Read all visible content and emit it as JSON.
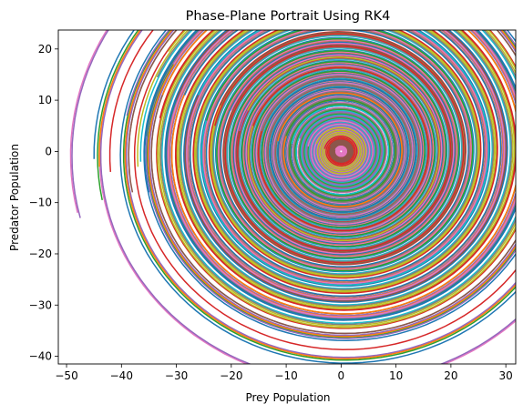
{
  "chart_data": {
    "type": "line",
    "title": "Phase-Plane Portrait Using RK4",
    "xlabel": "Prey Population",
    "ylabel": "Predator Population",
    "xlim": [
      -51.5,
      31.8
    ],
    "ylim": [
      -41.5,
      23.7
    ],
    "xticks": [
      -50,
      -40,
      -30,
      -20,
      -10,
      0,
      10,
      20,
      30
    ],
    "yticks": [
      -40,
      -30,
      -20,
      -10,
      0,
      10,
      20
    ],
    "grid": false,
    "legend": "none",
    "series": [
      {
        "start": [
          -48,
          -12
        ],
        "color": "#e377c2"
      },
      {
        "start": [
          -47.5,
          -13
        ],
        "color": "#9467bd"
      },
      {
        "start": [
          -45,
          -1.5
        ],
        "color": "#1f77b4"
      },
      {
        "start": [
          -44,
          -3
        ],
        "color": "#ff7f0e"
      },
      {
        "start": [
          -43.5,
          -9.5
        ],
        "color": "#2ca02c"
      },
      {
        "start": [
          -42,
          -4
        ],
        "color": "#d62728"
      },
      {
        "start": [
          -39,
          7
        ],
        "color": "#9467bd"
      },
      {
        "start": [
          -38.5,
          -4.5
        ],
        "color": "#7f7f7f"
      },
      {
        "start": [
          -38,
          -8
        ],
        "color": "#8c564b"
      },
      {
        "start": [
          -37,
          -3
        ],
        "color": "#bcbd22"
      },
      {
        "start": [
          -36.5,
          -2
        ],
        "color": "#17becf"
      },
      {
        "start": [
          -35.5,
          3
        ],
        "color": "#2ca02c"
      },
      {
        "start": [
          -35,
          -8
        ],
        "color": "#1f77b4"
      },
      {
        "start": [
          -33.5,
          14.5
        ],
        "color": "#7f7f7f"
      },
      {
        "start": [
          -33,
          6.5
        ],
        "color": "#d62728"
      },
      {
        "start": [
          -32.5,
          11
        ],
        "color": "#ff7f0e"
      },
      {
        "start": [
          -31.5,
          19.5
        ],
        "color": "#bcbd22"
      },
      {
        "start": [
          -30.5,
          17
        ],
        "color": "#e377c2"
      },
      {
        "start": [
          -30,
          10
        ],
        "color": "#8c564b"
      },
      {
        "start": [
          -28.5,
          11
        ],
        "color": "#1f77b4"
      },
      {
        "start": [
          -26,
          11
        ],
        "color": "#17becf"
      },
      {
        "start": [
          -24.5,
          6
        ],
        "color": "#2ca02c"
      },
      {
        "start": [
          -23,
          5
        ],
        "color": "#d62728"
      },
      {
        "start": [
          -22,
          9
        ],
        "color": "#8c564b"
      },
      {
        "start": [
          -20,
          8
        ],
        "color": "#e377c2"
      },
      {
        "start": [
          -18.5,
          4
        ],
        "color": "#9467bd"
      },
      {
        "start": [
          -17,
          8
        ],
        "color": "#bcbd22"
      },
      {
        "start": [
          -16,
          5
        ],
        "color": "#d62728"
      },
      {
        "start": [
          -14.5,
          4
        ],
        "color": "#7f7f7f"
      },
      {
        "start": [
          -13,
          6
        ],
        "color": "#1f77b4"
      },
      {
        "start": [
          -11.5,
          2
        ],
        "color": "#ff7f0e"
      },
      {
        "start": [
          -10,
          3
        ],
        "color": "#2ca02c"
      },
      {
        "start": [
          -9,
          1.5
        ],
        "color": "#17becf"
      },
      {
        "start": [
          -7.5,
          2.5
        ],
        "color": "#9467bd"
      },
      {
        "start": [
          -6,
          1
        ],
        "color": "#e377c2"
      },
      {
        "start": [
          -4.5,
          1.5
        ],
        "color": "#bcbd22"
      },
      {
        "start": [
          -3,
          0.5
        ],
        "color": "#d62728"
      },
      {
        "start": [
          -2,
          1
        ],
        "color": "#8c564b"
      },
      {
        "start": [
          -1,
          0.3
        ],
        "color": "#e377c2"
      }
    ]
  }
}
